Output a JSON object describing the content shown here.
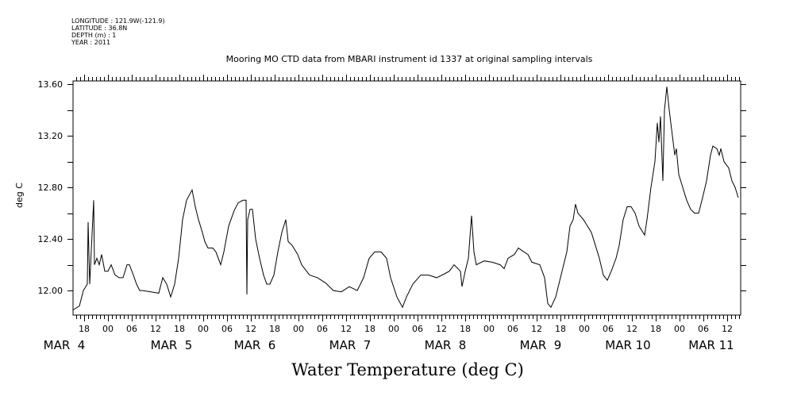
{
  "header": {
    "longitude": "LONGITUDE : 121.9W(-121.9)",
    "latitude": "LATITUDE : 36.8N",
    "depth": "DEPTH (m) : 1",
    "year": "YEAR : 2011"
  },
  "chart_data": {
    "type": "line",
    "title": "Mooring MO CTD data from MBARI instrument id 1337 at original sampling intervals",
    "xlabel": "Water Temperature (deg C)",
    "ylabel": "deg C",
    "x_units": "hours since MAR 4 00:00 (2011)",
    "xlim": [
      -8.8,
      159.4
    ],
    "ylim": [
      11.81,
      13.625
    ],
    "yticks": [
      "12.00",
      "12.40",
      "12.80",
      "13.20",
      "13.60"
    ],
    "hour_ticks": [
      "18",
      "00",
      "06",
      "12",
      "18",
      "00",
      "06",
      "12",
      "18",
      "00",
      "06",
      "12",
      "18",
      "00",
      "06",
      "12",
      "18",
      "00",
      "06",
      "12",
      "18",
      "00",
      "06",
      "12",
      "18",
      "00",
      "06",
      "12",
      "18",
      "00",
      "06",
      "12"
    ],
    "day_labels": [
      "MAR  4",
      "MAR  5",
      "MAR  6",
      "MAR  7",
      "MAR  8",
      "MAR  9",
      "MAR 10",
      "MAR 11"
    ],
    "series": [
      {
        "name": "Water Temperature",
        "points": [
          [
            -8.8,
            11.85
          ],
          [
            -7.2,
            11.88
          ],
          [
            -6.2,
            12.0
          ],
          [
            -5.2,
            12.05
          ],
          [
            -5,
            12.53
          ],
          [
            -4.6,
            12.05
          ],
          [
            -3.6,
            12.7
          ],
          [
            -3.4,
            12.2
          ],
          [
            -2.8,
            12.25
          ],
          [
            -2.2,
            12.2
          ],
          [
            -1.6,
            12.28
          ],
          [
            -0.8,
            12.15
          ],
          [
            0,
            12.15
          ],
          [
            0.8,
            12.2
          ],
          [
            1.8,
            12.12
          ],
          [
            2.8,
            12.1
          ],
          [
            3.8,
            12.1
          ],
          [
            4.8,
            12.2
          ],
          [
            5.4,
            12.2
          ],
          [
            6.4,
            12.12
          ],
          [
            7.2,
            12.05
          ],
          [
            8,
            12.0
          ],
          [
            8.8,
            12.0
          ],
          [
            10.8,
            11.99
          ],
          [
            12.8,
            11.98
          ],
          [
            13.8,
            12.1
          ],
          [
            14.8,
            12.05
          ],
          [
            15.8,
            11.95
          ],
          [
            16.8,
            12.05
          ],
          [
            17.8,
            12.25
          ],
          [
            18.8,
            12.55
          ],
          [
            19.8,
            12.7
          ],
          [
            21.2,
            12.78
          ],
          [
            22,
            12.65
          ],
          [
            22.8,
            12.55
          ],
          [
            23.8,
            12.45
          ],
          [
            24.4,
            12.38
          ],
          [
            25.2,
            12.33
          ],
          [
            26.4,
            12.33
          ],
          [
            27.2,
            12.3
          ],
          [
            28.4,
            12.2
          ],
          [
            29.2,
            12.3
          ],
          [
            30.4,
            12.5
          ],
          [
            31.8,
            12.62
          ],
          [
            32.8,
            12.68
          ],
          [
            34,
            12.7
          ],
          [
            34.8,
            12.7
          ],
          [
            35,
            11.97
          ],
          [
            35.2,
            12.55
          ],
          [
            35.8,
            12.63
          ],
          [
            36.4,
            12.63
          ],
          [
            37.2,
            12.4
          ],
          [
            38.2,
            12.25
          ],
          [
            39.2,
            12.12
          ],
          [
            40,
            12.05
          ],
          [
            40.8,
            12.05
          ],
          [
            41.8,
            12.12
          ],
          [
            42.8,
            12.3
          ],
          [
            43.8,
            12.45
          ],
          [
            44.8,
            12.55
          ],
          [
            45.4,
            12.38
          ],
          [
            46.4,
            12.35
          ],
          [
            47.8,
            12.28
          ],
          [
            48.8,
            12.2
          ],
          [
            50.8,
            12.12
          ],
          [
            52.8,
            12.1
          ],
          [
            54.8,
            12.06
          ],
          [
            56.8,
            12.0
          ],
          [
            58.8,
            11.99
          ],
          [
            60.8,
            12.03
          ],
          [
            62.8,
            12.0
          ],
          [
            64.4,
            12.1
          ],
          [
            65.8,
            12.25
          ],
          [
            67.2,
            12.3
          ],
          [
            68.8,
            12.3
          ],
          [
            70.2,
            12.25
          ],
          [
            71.2,
            12.1
          ],
          [
            72.8,
            11.95
          ],
          [
            74.2,
            11.87
          ],
          [
            75.2,
            11.95
          ],
          [
            76.8,
            12.05
          ],
          [
            78.8,
            12.12
          ],
          [
            80.8,
            12.12
          ],
          [
            82.8,
            12.1
          ],
          [
            84.8,
            12.13
          ],
          [
            86,
            12.15
          ],
          [
            87.2,
            12.2
          ],
          [
            88.8,
            12.15
          ],
          [
            89.2,
            12.03
          ],
          [
            90,
            12.15
          ],
          [
            90.8,
            12.25
          ],
          [
            91.6,
            12.58
          ],
          [
            92.2,
            12.3
          ],
          [
            92.8,
            12.2
          ],
          [
            94.8,
            12.23
          ],
          [
            96.8,
            12.22
          ],
          [
            98.8,
            12.2
          ],
          [
            99.8,
            12.17
          ],
          [
            100.8,
            12.25
          ],
          [
            102.4,
            12.28
          ],
          [
            103.4,
            12.33
          ],
          [
            104.8,
            12.3
          ],
          [
            105.8,
            12.28
          ],
          [
            106.8,
            12.22
          ],
          [
            108.8,
            12.2
          ],
          [
            110,
            12.1
          ],
          [
            110.8,
            11.9
          ],
          [
            111.6,
            11.87
          ],
          [
            112.8,
            11.95
          ],
          [
            114.4,
            12.15
          ],
          [
            115.6,
            12.3
          ],
          [
            116.4,
            12.5
          ],
          [
            117.2,
            12.55
          ],
          [
            117.8,
            12.67
          ],
          [
            118.4,
            12.6
          ],
          [
            119.8,
            12.55
          ],
          [
            120.8,
            12.5
          ],
          [
            121.8,
            12.45
          ],
          [
            122.8,
            12.35
          ],
          [
            123.8,
            12.25
          ],
          [
            124.8,
            12.12
          ],
          [
            125.8,
            12.08
          ],
          [
            126.8,
            12.15
          ],
          [
            128,
            12.25
          ],
          [
            128.8,
            12.35
          ],
          [
            129.8,
            12.55
          ],
          [
            130.8,
            12.65
          ],
          [
            131.8,
            12.65
          ],
          [
            132.8,
            12.6
          ],
          [
            133.8,
            12.5
          ],
          [
            135.2,
            12.43
          ],
          [
            135.8,
            12.55
          ],
          [
            136.8,
            12.8
          ],
          [
            137.8,
            13.0
          ],
          [
            138.4,
            13.3
          ],
          [
            138.8,
            13.15
          ],
          [
            139.2,
            13.35
          ],
          [
            139.8,
            12.85
          ],
          [
            140.2,
            13.4
          ],
          [
            140.8,
            13.58
          ],
          [
            141.4,
            13.4
          ],
          [
            142,
            13.25
          ],
          [
            142.4,
            13.15
          ],
          [
            142.8,
            13.05
          ],
          [
            143.2,
            13.1
          ],
          [
            143.8,
            12.9
          ],
          [
            144.8,
            12.8
          ],
          [
            145.8,
            12.7
          ],
          [
            146.8,
            12.63
          ],
          [
            147.8,
            12.6
          ],
          [
            148.8,
            12.6
          ],
          [
            149.8,
            12.72
          ],
          [
            150.8,
            12.85
          ],
          [
            151.8,
            13.05
          ],
          [
            152.4,
            13.12
          ],
          [
            153.4,
            13.1
          ],
          [
            154,
            13.05
          ],
          [
            154.4,
            13.1
          ],
          [
            155.2,
            13.0
          ],
          [
            156.4,
            12.95
          ],
          [
            157.2,
            12.85
          ],
          [
            158,
            12.8
          ],
          [
            158.8,
            12.72
          ]
        ]
      }
    ],
    "grid": false,
    "legend": "none"
  }
}
